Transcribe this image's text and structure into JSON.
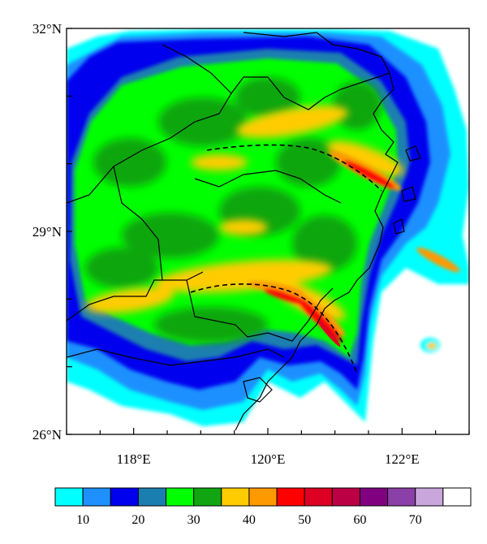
{
  "map": {
    "lat_labels": [
      {
        "lat": 32,
        "text": "32°N"
      },
      {
        "lat": 29,
        "text": "29°N"
      },
      {
        "lat": 26,
        "text": "26°N"
      }
    ],
    "lon_labels": [
      {
        "lon": 118,
        "text": "118°E"
      },
      {
        "lon": 120,
        "text": "120°E"
      },
      {
        "lon": 122,
        "text": "122°E"
      }
    ],
    "lat_range": [
      26,
      32
    ],
    "lon_range": [
      117,
      123
    ]
  },
  "colorbar": {
    "colors": [
      "#00ffff",
      "#1e90ff",
      "#0000ee",
      "#1a7fb0",
      "#00ff00",
      "#11a611",
      "#ffcc00",
      "#ff9900",
      "#ff0000",
      "#dd0022",
      "#bb0044",
      "#800080",
      "#8b3fa8",
      "#c9a6dc",
      "#ffffff"
    ],
    "labels": [
      {
        "boundary": 1,
        "text": "10"
      },
      {
        "boundary": 3,
        "text": "20"
      },
      {
        "boundary": 5,
        "text": "30"
      },
      {
        "boundary": 7,
        "text": "40"
      },
      {
        "boundary": 9,
        "text": "50"
      },
      {
        "boundary": 11,
        "text": "60"
      },
      {
        "boundary": 13,
        "text": "70"
      }
    ]
  }
}
